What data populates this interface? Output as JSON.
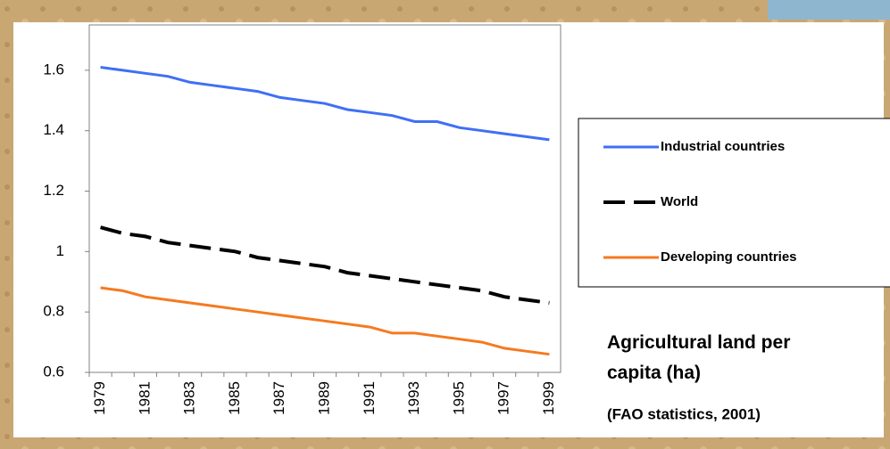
{
  "chart_data": {
    "type": "line",
    "title": "Agricultural land per capita (ha)",
    "subtitle": "(FAO statistics, 2001)",
    "categories": [
      "1979",
      null,
      "1981",
      null,
      "1983",
      null,
      "1985",
      null,
      "1987",
      null,
      "1989",
      null,
      "1991",
      null,
      "1993",
      null,
      "1995",
      null,
      "1997",
      null,
      "1999"
    ],
    "series": [
      {
        "name": "Industrial countries",
        "color": "#3f6ff5",
        "line_style": "solid",
        "values": [
          1.61,
          1.6,
          1.59,
          1.58,
          1.56,
          1.55,
          1.54,
          1.53,
          1.51,
          1.5,
          1.49,
          1.47,
          1.46,
          1.45,
          1.43,
          1.43,
          1.41,
          1.4,
          1.39,
          1.38,
          1.37
        ]
      },
      {
        "name": "World",
        "color": "#000000",
        "line_style": "dashed",
        "values": [
          1.08,
          1.06,
          1.05,
          1.03,
          1.02,
          1.01,
          1.0,
          0.98,
          0.97,
          0.96,
          0.95,
          0.93,
          0.92,
          0.91,
          0.9,
          0.89,
          0.88,
          0.87,
          0.85,
          0.84,
          0.83
        ]
      },
      {
        "name": "Developing countries",
        "color": "#f57a20",
        "line_style": "solid",
        "values": [
          0.88,
          0.87,
          0.85,
          0.84,
          0.83,
          0.82,
          0.81,
          0.8,
          0.79,
          0.78,
          0.77,
          0.76,
          0.75,
          0.73,
          0.73,
          0.72,
          0.71,
          0.7,
          0.68,
          0.67,
          0.66
        ]
      }
    ],
    "ylim": [
      0.6,
      1.75
    ],
    "yticks": [
      0.6,
      0.8,
      1,
      1.2,
      1.4,
      1.6
    ],
    "grid": false,
    "legend": "right"
  }
}
